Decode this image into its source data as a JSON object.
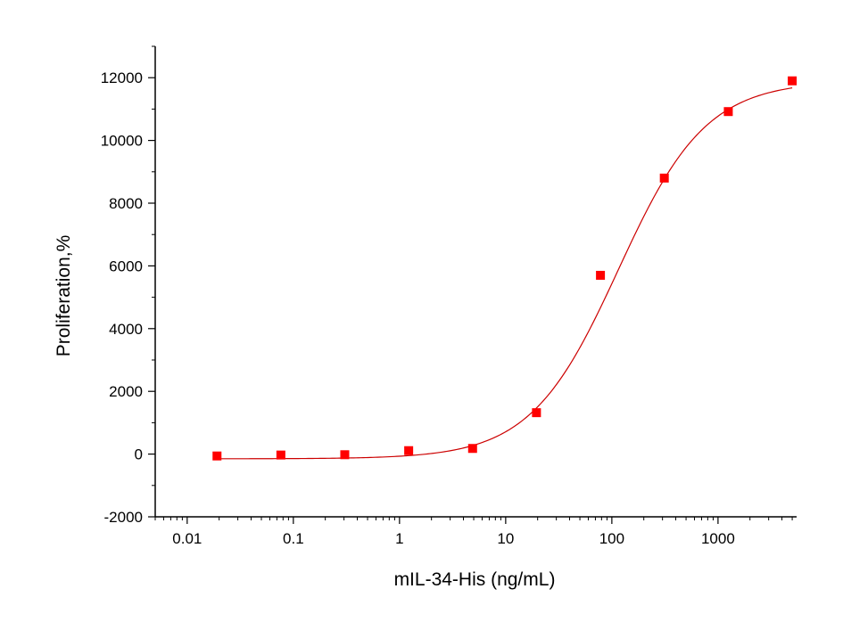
{
  "chart_data": {
    "type": "scatter",
    "title": "",
    "xlabel": "mIL-34-His (ng/mL)",
    "ylabel": "Proliferation,%",
    "xscale": "log",
    "xlim": [
      0.005,
      5500
    ],
    "ylim": [
      -2000,
      13000
    ],
    "xticks": [
      {
        "value": 0.01,
        "label": "0.01"
      },
      {
        "value": 0.1,
        "label": "0.1"
      },
      {
        "value": 1,
        "label": "1"
      },
      {
        "value": 10,
        "label": "10"
      },
      {
        "value": 100,
        "label": "100"
      },
      {
        "value": 1000,
        "label": "1000"
      }
    ],
    "yticks": [
      {
        "value": -2000,
        "label": "-2000"
      },
      {
        "value": 0,
        "label": "0"
      },
      {
        "value": 2000,
        "label": "2000"
      },
      {
        "value": 4000,
        "label": "4000"
      },
      {
        "value": 6000,
        "label": "6000"
      },
      {
        "value": 8000,
        "label": "8000"
      },
      {
        "value": 10000,
        "label": "10000"
      },
      {
        "value": 12000,
        "label": "12000"
      }
    ],
    "grid": false,
    "legend": "none",
    "marker_color": "#ff0000",
    "curve_color": "#cc0000",
    "series": [
      {
        "points": [
          {
            "x": 0.0191,
            "y": -60
          },
          {
            "x": 0.0763,
            "y": -30
          },
          {
            "x": 0.305,
            "y": -20
          },
          {
            "x": 1.22,
            "y": 110
          },
          {
            "x": 4.88,
            "y": 180
          },
          {
            "x": 19.5,
            "y": 1320
          },
          {
            "x": 78.1,
            "y": 5700
          },
          {
            "x": 312,
            "y": 8800
          },
          {
            "x": 1250,
            "y": 10920
          },
          {
            "x": 5000,
            "y": 11900
          }
        ],
        "fit": {
          "model": "4PL",
          "bottom": -150,
          "top": 11900,
          "ec50": 115,
          "hill": 1.05,
          "x_range": [
            0.0191,
            5000
          ]
        }
      }
    ]
  }
}
